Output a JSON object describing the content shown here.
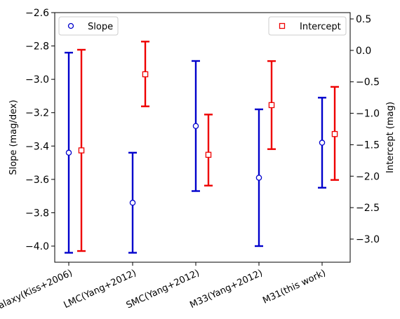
{
  "chart_data": {
    "type": "errorbar",
    "categories": [
      "Galaxy(Kiss+2006)",
      "LMC(Yang+2012)",
      "SMC(Yang+2012)",
      "M33(Yang+2012)",
      "M31(this work)"
    ],
    "ylabel": "Slope (mag/dex)",
    "y2label": "Intercept (mag)",
    "ylim": [
      -4.1,
      -2.6
    ],
    "y2lim": [
      -3.34,
      0.6
    ],
    "yticks": [
      "−2.6",
      "−2.8",
      "−3.0",
      "−3.2",
      "−3.4",
      "−3.6",
      "−3.8",
      "−4.0"
    ],
    "yticks_values": [
      -2.6,
      -2.8,
      -3.0,
      -3.2,
      -3.4,
      -3.6,
      -3.8,
      -4.0
    ],
    "y2ticks": [
      "0.5",
      "0.0",
      "−0.5",
      "−1.0",
      "−1.5",
      "−2.0",
      "−2.5",
      "−3.0"
    ],
    "y2ticks_values": [
      0.5,
      0.0,
      -0.5,
      -1.0,
      -1.5,
      -2.0,
      -2.5,
      -3.0
    ],
    "legend_placement": [
      "top-left",
      "top-right"
    ],
    "series": [
      {
        "name": "Slope",
        "axis": "left",
        "color": "#0000cc",
        "marker": "circle",
        "values": [
          -3.44,
          -3.74,
          -3.28,
          -3.59,
          -3.38
        ],
        "err_low": [
          -4.04,
          -4.04,
          -3.67,
          -4.0,
          -3.65
        ],
        "err_high": [
          -2.84,
          -3.44,
          -2.89,
          -3.18,
          -3.11
        ]
      },
      {
        "name": "Intercept",
        "axis": "right",
        "color": "#ee0000",
        "marker": "square",
        "values": [
          -1.59,
          -0.38,
          -1.66,
          -0.87,
          -1.33
        ],
        "err_low": [
          -3.19,
          -0.89,
          -2.15,
          -1.57,
          -2.06
        ],
        "err_high": [
          0.01,
          0.14,
          -1.02,
          -0.17,
          -0.58
        ]
      }
    ]
  }
}
